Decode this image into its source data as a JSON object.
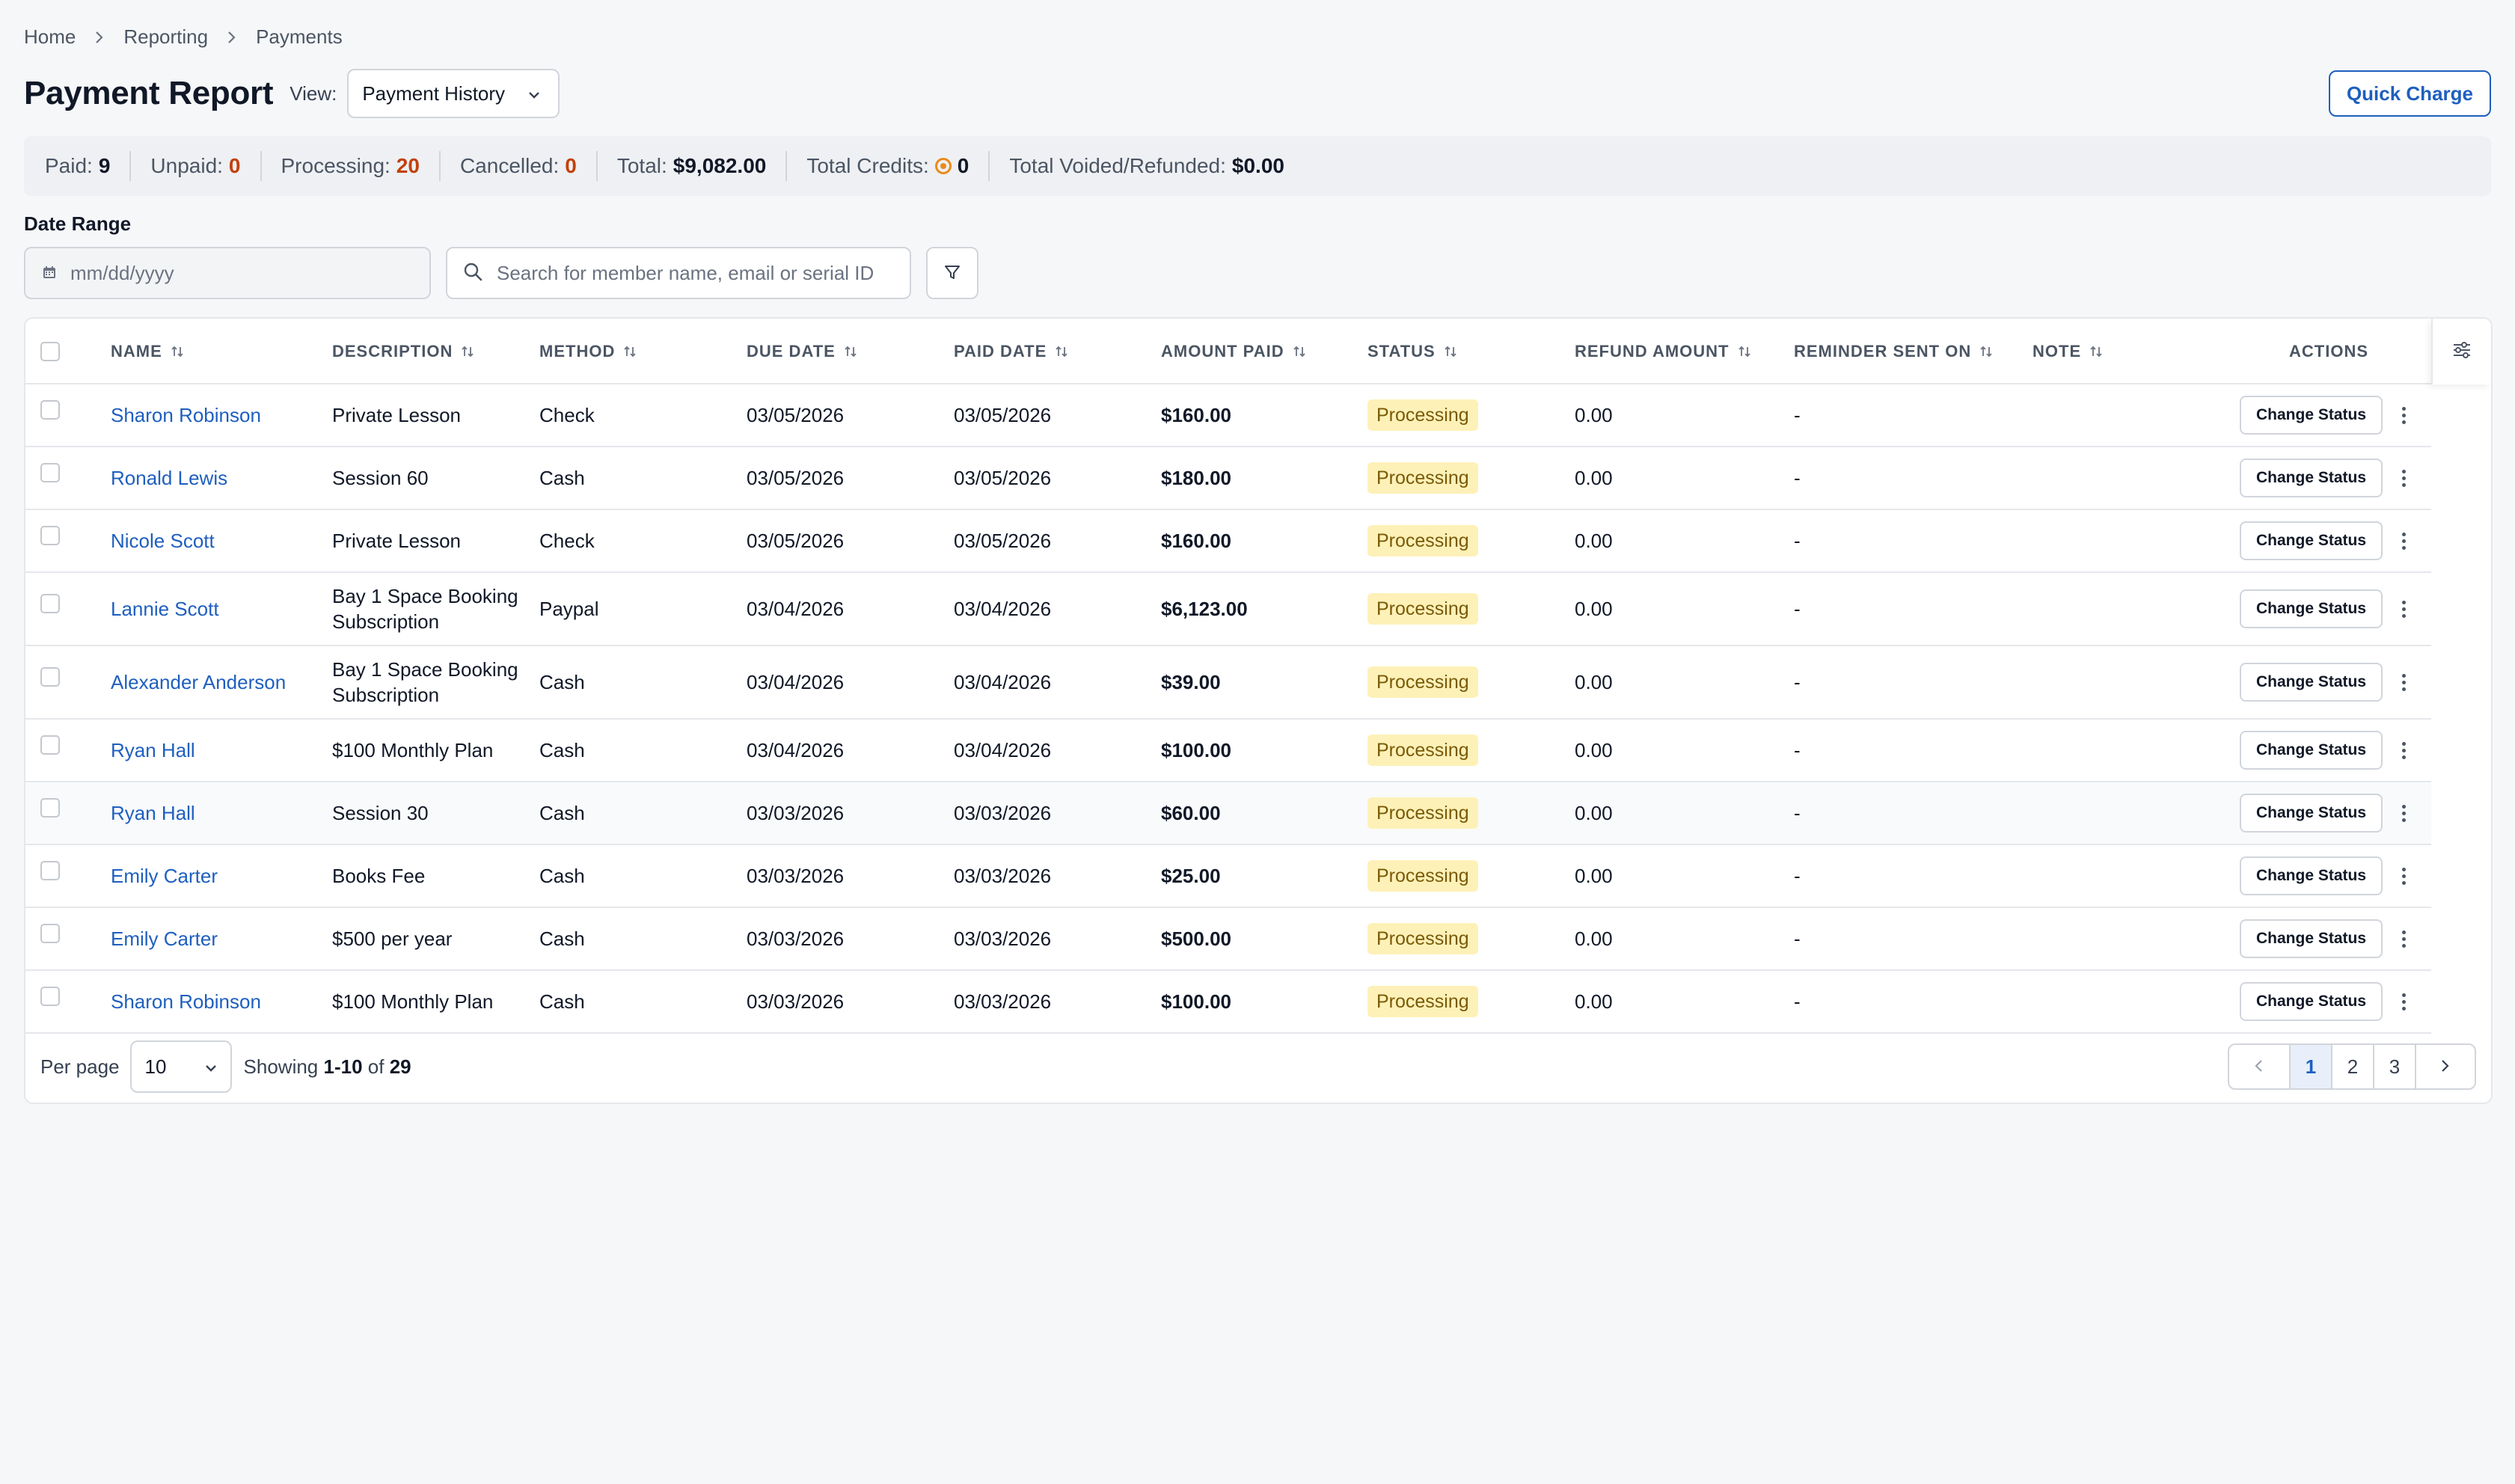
{
  "breadcrumb": [
    "Home",
    "Reporting",
    "Payments"
  ],
  "header": {
    "title": "Payment Report",
    "view_label": "View:",
    "view_value": "Payment History",
    "quick_charge": "Quick Charge"
  },
  "summary": {
    "paid_label": "Paid:",
    "paid": "9",
    "unpaid_label": "Unpaid:",
    "unpaid": "0",
    "processing_label": "Processing:",
    "processing": "20",
    "cancelled_label": "Cancelled:",
    "cancelled": "0",
    "total_label": "Total:",
    "total": "$9,082.00",
    "credits_label": "Total Credits:",
    "credits": "0",
    "voided_label": "Total Voided/Refunded:",
    "voided": "$0.00"
  },
  "filters": {
    "date_label": "Date Range",
    "date_placeholder": "mm/dd/yyyy",
    "search_placeholder": "Search for member name, email or serial ID"
  },
  "table": {
    "columns": {
      "name": "NAME",
      "description": "DESCRIPTION",
      "method": "METHOD",
      "due_date": "DUE DATE",
      "paid_date": "PAID DATE",
      "amount_paid": "AMOUNT PAID",
      "status": "STATUS",
      "refund_amount": "REFUND AMOUNT",
      "reminder_sent_on": "REMINDER SENT ON",
      "note": "NOTE",
      "actions": "ACTIONS"
    },
    "action_label": "Change Status",
    "rows": [
      {
        "name": "Sharon Robinson",
        "description": "Private Lesson",
        "method": "Check",
        "due": "03/05/2026",
        "paid": "03/05/2026",
        "amount": "$160.00",
        "status": "Processing",
        "refund": "0.00",
        "reminder": "-",
        "note": ""
      },
      {
        "name": "Ronald Lewis",
        "description": "Session 60",
        "method": "Cash",
        "due": "03/05/2026",
        "paid": "03/05/2026",
        "amount": "$180.00",
        "status": "Processing",
        "refund": "0.00",
        "reminder": "-",
        "note": ""
      },
      {
        "name": "Nicole Scott",
        "description": "Private Lesson",
        "method": "Check",
        "due": "03/05/2026",
        "paid": "03/05/2026",
        "amount": "$160.00",
        "status": "Processing",
        "refund": "0.00",
        "reminder": "-",
        "note": ""
      },
      {
        "name": "Lannie Scott",
        "description": "Bay 1 Space Booking Subscription",
        "method": "Paypal",
        "due": "03/04/2026",
        "paid": "03/04/2026",
        "amount": "$6,123.00",
        "status": "Processing",
        "refund": "0.00",
        "reminder": "-",
        "note": ""
      },
      {
        "name": "Alexander Anderson",
        "description": "Bay 1 Space Booking Subscription",
        "method": "Cash",
        "due": "03/04/2026",
        "paid": "03/04/2026",
        "amount": "$39.00",
        "status": "Processing",
        "refund": "0.00",
        "reminder": "-",
        "note": ""
      },
      {
        "name": "Ryan Hall",
        "description": "$100 Monthly Plan",
        "method": "Cash",
        "due": "03/04/2026",
        "paid": "03/04/2026",
        "amount": "$100.00",
        "status": "Processing",
        "refund": "0.00",
        "reminder": "-",
        "note": ""
      },
      {
        "name": "Ryan Hall",
        "description": "Session 30",
        "method": "Cash",
        "due": "03/03/2026",
        "paid": "03/03/2026",
        "amount": "$60.00",
        "status": "Processing",
        "refund": "0.00",
        "reminder": "-",
        "note": ""
      },
      {
        "name": "Emily Carter",
        "description": "Books Fee",
        "method": "Cash",
        "due": "03/03/2026",
        "paid": "03/03/2026",
        "amount": "$25.00",
        "status": "Processing",
        "refund": "0.00",
        "reminder": "-",
        "note": ""
      },
      {
        "name": "Emily Carter",
        "description": "$500 per year",
        "method": "Cash",
        "due": "03/03/2026",
        "paid": "03/03/2026",
        "amount": "$500.00",
        "status": "Processing",
        "refund": "0.00",
        "reminder": "-",
        "note": ""
      },
      {
        "name": "Sharon Robinson",
        "description": "$100 Monthly Plan",
        "method": "Cash",
        "due": "03/03/2026",
        "paid": "03/03/2026",
        "amount": "$100.00",
        "status": "Processing",
        "refund": "0.00",
        "reminder": "-",
        "note": ""
      }
    ]
  },
  "footer": {
    "per_page_label": "Per page",
    "per_page": "10",
    "showing_prefix": "Showing",
    "showing_range": "1-10",
    "showing_of": "of",
    "showing_total": "29",
    "pages": [
      "1",
      "2",
      "3"
    ],
    "current_page": "1"
  },
  "colors": {
    "accent": "#1e5fbf",
    "processing_badge_bg": "#fdf1b8",
    "highlight_value": "#c2410c"
  },
  "icons": {
    "breadcrumb_separator": "chevron-right-icon",
    "view_select": "chevron-down-icon",
    "date": "calendar-icon",
    "search": "search-icon",
    "filter": "filter-icon",
    "sort": "sort-icon",
    "column_settings": "sliders-icon",
    "row_menu": "kebab-menu-icon",
    "credits": "coin-icon"
  }
}
